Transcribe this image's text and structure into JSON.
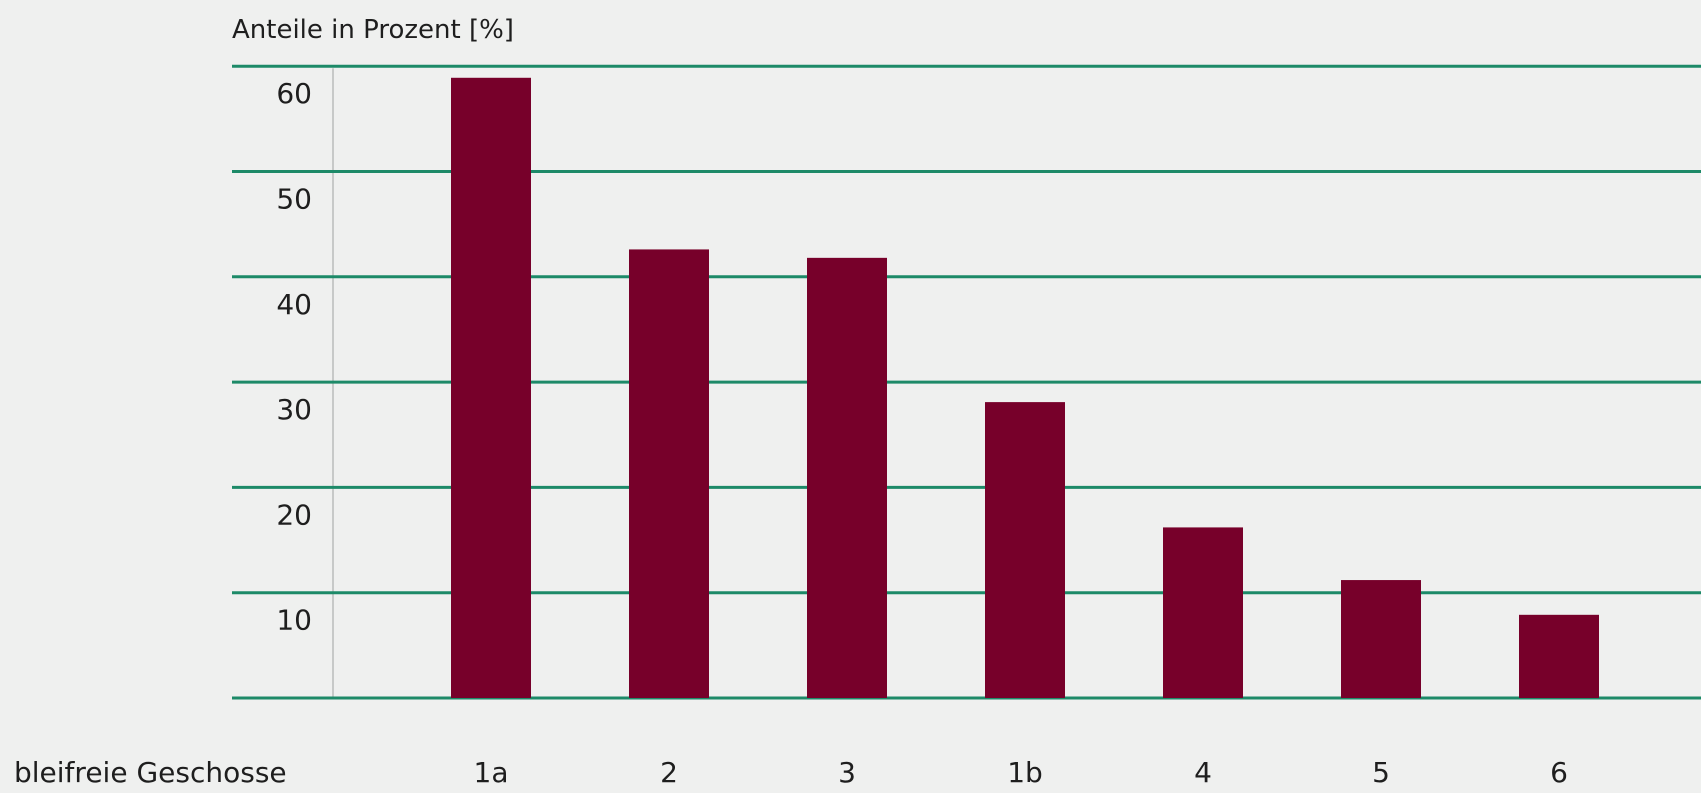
{
  "chart_data": {
    "type": "bar",
    "title": "",
    "ylabel": "Anteile in Prozent [%]",
    "xlabel": "bleifreie Geschosse",
    "categories": [
      "1a",
      "2",
      "3",
      "1b",
      "4",
      "5",
      "6"
    ],
    "values": [
      58.9,
      42.6,
      41.8,
      28.1,
      16.2,
      11.2,
      7.9
    ],
    "ylim": [
      0,
      60
    ],
    "yticks": [
      10,
      20,
      30,
      40,
      50,
      60
    ],
    "grid": true,
    "colors": {
      "bar": "#77002a",
      "grid": "#1d8a68",
      "y_axis": "#c7c9c8",
      "background": "#eff0ef",
      "text": "#1e1e1e"
    }
  }
}
